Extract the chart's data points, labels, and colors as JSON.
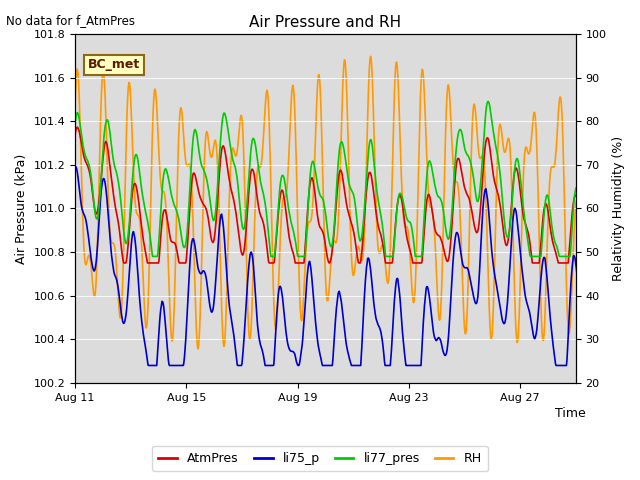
{
  "title": "Air Pressure and RH",
  "no_data_text": "No data for f_AtmPres",
  "bc_label": "BC_met",
  "xlabel": "Time",
  "ylabel_left": "Air Pressure (kPa)",
  "ylabel_right": "Relativity Humidity (%)",
  "ylim_left": [
    100.2,
    101.8
  ],
  "ylim_right": [
    20,
    100
  ],
  "yticks_left": [
    100.2,
    100.4,
    100.6,
    100.8,
    101.0,
    101.2,
    101.4,
    101.6,
    101.8
  ],
  "yticks_right": [
    20,
    30,
    40,
    50,
    60,
    70,
    80,
    90,
    100
  ],
  "xtick_labels": [
    "Aug 11",
    "Aug 15",
    "Aug 19",
    "Aug 23",
    "Aug 27"
  ],
  "colors": {
    "AtmPres": "#dd0000",
    "li75_p": "#0000cc",
    "li77_pres": "#00cc00",
    "RH": "#ff9900"
  },
  "plot_bg": "#dcdcdc",
  "linewidth": 1.2,
  "seed": 12345
}
